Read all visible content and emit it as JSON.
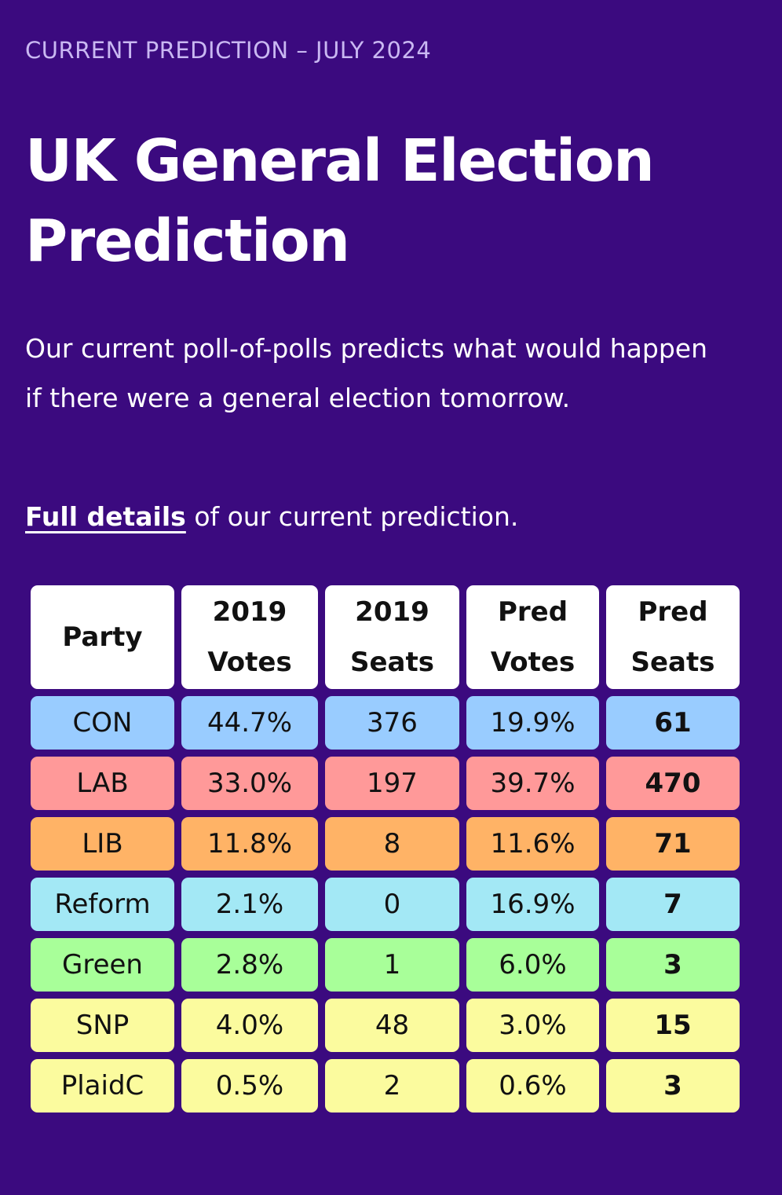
{
  "header": {
    "eyebrow": "CURRENT PREDICTION – JULY 2024",
    "title": "UK General Election Prediction"
  },
  "intro": {
    "text": "Our current poll-of-polls predicts what would happen if there were a general election tomorrow.",
    "link_label": "Full details",
    "link_suffix": " of our current prediction."
  },
  "table": {
    "columns": [
      "Party",
      "2019 Votes",
      "2019 Seats",
      "Pred Votes",
      "Pred Seats"
    ],
    "rows": [
      {
        "party": "CON",
        "votes_2019": "44.7%",
        "seats_2019": "376",
        "pred_votes": "19.9%",
        "pred_seats": "61",
        "color": "#99ccff"
      },
      {
        "party": "LAB",
        "votes_2019": "33.0%",
        "seats_2019": "197",
        "pred_votes": "39.7%",
        "pred_seats": "470",
        "color": "#ff9999"
      },
      {
        "party": "LIB",
        "votes_2019": "11.8%",
        "seats_2019": "8",
        "pred_votes": "11.6%",
        "pred_seats": "71",
        "color": "#ffb366"
      },
      {
        "party": "Reform",
        "votes_2019": "2.1%",
        "seats_2019": "0",
        "pred_votes": "16.9%",
        "pred_seats": "7",
        "color": "#a3e8f5"
      },
      {
        "party": "Green",
        "votes_2019": "2.8%",
        "seats_2019": "1",
        "pred_votes": "6.0%",
        "pred_seats": "3",
        "color": "#a8ff99"
      },
      {
        "party": "SNP",
        "votes_2019": "4.0%",
        "seats_2019": "48",
        "pred_votes": "3.0%",
        "pred_seats": "15",
        "color": "#fbfb9e"
      },
      {
        "party": "PlaidC",
        "votes_2019": "0.5%",
        "seats_2019": "2",
        "pred_votes": "0.6%",
        "pred_seats": "3",
        "color": "#fbfb9e"
      }
    ]
  }
}
